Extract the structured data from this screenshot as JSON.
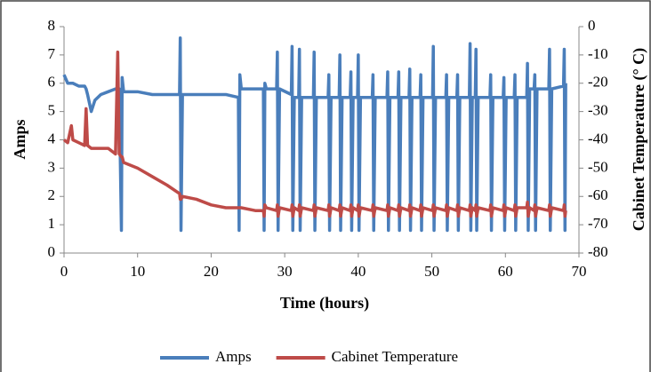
{
  "chart_data": {
    "type": "line",
    "x_label": "Time (hours)",
    "y_label": "Amps",
    "y2_label": "Cabinet Temperature (° C)",
    "x": [
      0,
      0.5,
      1,
      1.2,
      2,
      2.8,
      3,
      3.2,
      3.7,
      4.2,
      5,
      6,
      7,
      7.3,
      7.5,
      7.8,
      7.9,
      8.1,
      10,
      12,
      14,
      15.7,
      15.8,
      15.9,
      16.1,
      18,
      20,
      22,
      23.7,
      23.8,
      23.9,
      24.1,
      26,
      27.1,
      27.2,
      27.3,
      27.5,
      28.9,
      29,
      29.1,
      29.3,
      30.9,
      31,
      31.1,
      31.3,
      31.9,
      32,
      32.1,
      32.3,
      33.9,
      34,
      34.1,
      34.3,
      35.9,
      36,
      36.1,
      36.3,
      37.4,
      37.5,
      37.6,
      37.8,
      38.9,
      39,
      39.1,
      39.3,
      39.9,
      40,
      40.1,
      40.3,
      41.9,
      42,
      42.1,
      42.3,
      43.9,
      44,
      44.1,
      44.3,
      45.4,
      45.5,
      45.6,
      45.8,
      46.9,
      47,
      47.1,
      47.3,
      48.4,
      48.5,
      48.6,
      48.8,
      50.1,
      50.2,
      50.3,
      50.5,
      51.9,
      52,
      52.1,
      52.3,
      53.4,
      53.5,
      53.6,
      53.8,
      55.1,
      55.2,
      55.3,
      55.5,
      55.9,
      56,
      56.1,
      56.3,
      57.9,
      58,
      58.1,
      58.3,
      59.7,
      59.8,
      59.9,
      60.1,
      61.2,
      61.3,
      61.4,
      61.6,
      62.9,
      63,
      63.1,
      63.3,
      63.9,
      64,
      64.1,
      64.3,
      65.9,
      66,
      66.1,
      66.3,
      67.9,
      68,
      68.1,
      68.2
    ],
    "series": [
      {
        "name": "Amps",
        "color": "#4a7ebb",
        "values": [
          6.3,
          6.0,
          6.0,
          6.0,
          5.9,
          5.9,
          5.8,
          5.6,
          5.0,
          5.4,
          5.6,
          5.7,
          5.8,
          5.8,
          5.8,
          0.8,
          6.2,
          5.7,
          5.7,
          5.6,
          5.6,
          5.6,
          7.6,
          0.8,
          5.6,
          5.6,
          5.6,
          5.6,
          5.5,
          0.8,
          6.3,
          5.8,
          5.8,
          5.8,
          0.8,
          6.0,
          5.8,
          5.8,
          7.1,
          0.8,
          5.8,
          5.6,
          7.3,
          0.8,
          5.5,
          5.5,
          7.2,
          0.8,
          5.5,
          5.5,
          7.1,
          0.8,
          5.5,
          5.5,
          6.3,
          0.8,
          5.5,
          5.5,
          7.0,
          0.8,
          5.5,
          5.5,
          6.4,
          0.8,
          5.5,
          5.5,
          7.0,
          0.8,
          5.5,
          5.5,
          6.3,
          0.8,
          5.5,
          5.5,
          6.4,
          0.8,
          5.5,
          5.5,
          6.4,
          0.8,
          5.5,
          5.5,
          6.5,
          0.8,
          5.5,
          5.5,
          6.3,
          0.8,
          5.5,
          5.5,
          7.3,
          0.8,
          5.5,
          5.5,
          6.3,
          0.8,
          5.5,
          5.5,
          6.3,
          0.8,
          5.5,
          5.5,
          7.4,
          0.8,
          5.5,
          5.5,
          7.2,
          0.8,
          5.5,
          5.5,
          6.3,
          0.8,
          5.5,
          5.5,
          6.2,
          0.8,
          5.5,
          5.5,
          6.3,
          0.8,
          5.5,
          5.5,
          6.7,
          0.8,
          5.8,
          5.8,
          6.3,
          0.8,
          5.8,
          5.8,
          7.2,
          0.8,
          5.8,
          5.9,
          7.2,
          0.8,
          6.0
        ]
      },
      {
        "name": "Cabinet Temperature",
        "color": "#be4b48",
        "axis": "y2",
        "values": [
          -40,
          -41,
          -35,
          -40,
          -41,
          -42,
          -29,
          -42,
          -43,
          -43,
          -43,
          -43,
          -45,
          -9,
          -45,
          -46,
          -46,
          -48,
          -50,
          -53,
          -56,
          -59,
          -61,
          -61,
          -60,
          -61,
          -63,
          -64,
          -64,
          -64,
          -64,
          -64,
          -65,
          -65,
          -67,
          -63,
          -64,
          -65,
          -63,
          -67,
          -64,
          -65,
          -63,
          -67,
          -64,
          -65,
          -63,
          -67,
          -64,
          -65,
          -63,
          -67,
          -64,
          -65,
          -63,
          -67,
          -64,
          -65,
          -63,
          -67,
          -64,
          -65,
          -63,
          -67,
          -64,
          -65,
          -63,
          -67,
          -64,
          -65,
          -63,
          -67,
          -64,
          -65,
          -63,
          -67,
          -64,
          -65,
          -63,
          -67,
          -64,
          -65,
          -63,
          -67,
          -64,
          -65,
          -63,
          -67,
          -64,
          -65,
          -63,
          -67,
          -64,
          -65,
          -63,
          -67,
          -64,
          -65,
          -63,
          -67,
          -64,
          -65,
          -63,
          -67,
          -64,
          -65,
          -63,
          -67,
          -64,
          -65,
          -63,
          -67,
          -64,
          -65,
          -63,
          -67,
          -64,
          -65,
          -63,
          -67,
          -64,
          -64,
          -62,
          -67,
          -64,
          -65,
          -63,
          -67,
          -64,
          -65,
          -63,
          -67,
          -64,
          -65,
          -63,
          -67,
          -65
        ]
      }
    ],
    "xlim": [
      0,
      70
    ],
    "xticks": [
      0,
      10,
      20,
      30,
      40,
      50,
      60,
      70
    ],
    "ylim": [
      0,
      8
    ],
    "yticks": [
      0,
      1,
      2,
      3,
      4,
      5,
      6,
      7,
      8
    ],
    "y2lim": [
      -80,
      0
    ],
    "y2ticks": [
      -80,
      -70,
      -60,
      -50,
      -40,
      -30,
      -20,
      -10,
      0
    ],
    "legend": "bottom"
  }
}
